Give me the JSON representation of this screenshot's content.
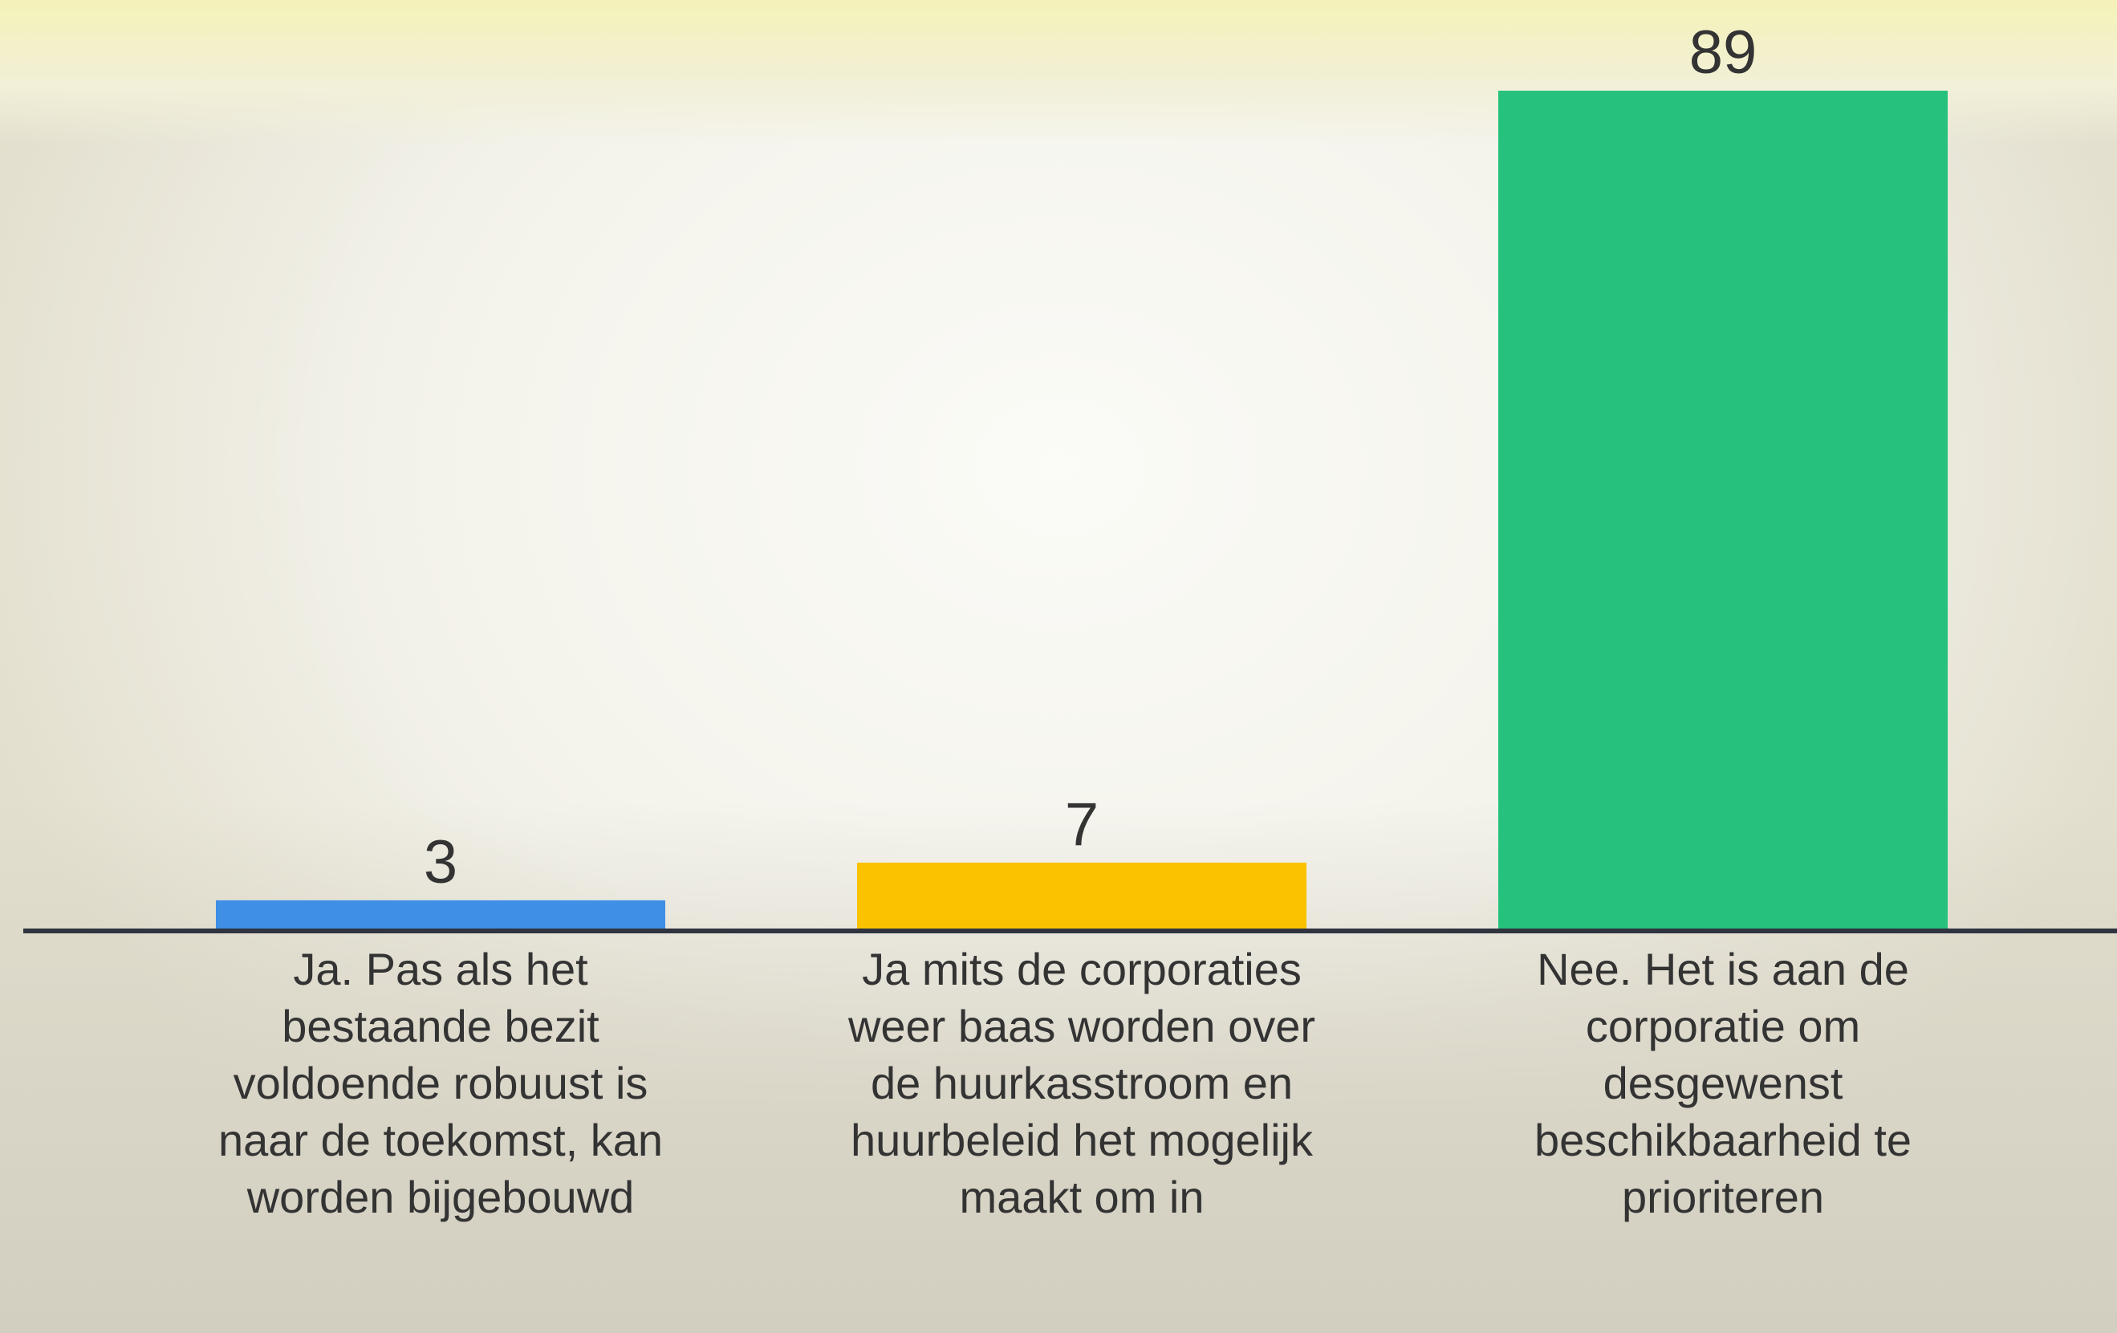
{
  "chart_data": {
    "type": "bar",
    "categories": [
      "Ja. Pas als het bestaande bezit voldoende robuust is naar de toekomst, kan worden bijgebouwd",
      "Ja mits de corporaties weer baas worden over de huurkasstroom en huurbeleid het mogelijk maakt om in",
      "Nee. Het is aan de corporatie om desgewenst beschikbaarheid te prioriteren"
    ],
    "values": [
      3,
      7,
      89
    ],
    "colors": [
      "#3f8fe6",
      "#fbc200",
      "#26c27d"
    ]
  }
}
